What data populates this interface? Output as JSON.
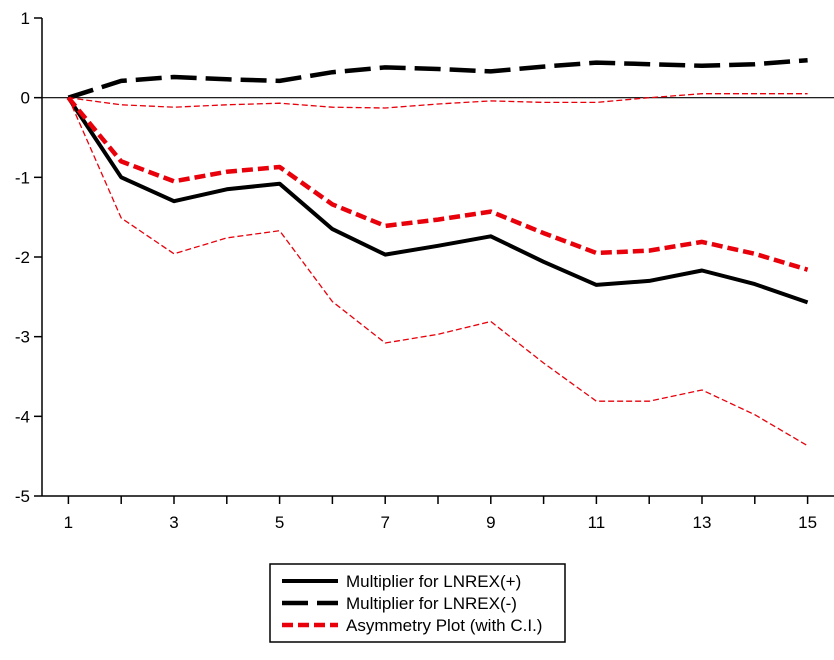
{
  "chart_data": {
    "type": "line",
    "x": [
      1,
      2,
      3,
      4,
      5,
      6,
      7,
      8,
      9,
      10,
      11,
      12,
      13,
      14,
      15
    ],
    "x_tick_labels": [
      "1",
      "3",
      "5",
      "7",
      "9",
      "11",
      "13",
      "15"
    ],
    "xlim": [
      0.5,
      15.5
    ],
    "ylim": [
      -5,
      1
    ],
    "y_tick_labels": [
      "1",
      "0",
      "-1",
      "-2",
      "-3",
      "-4",
      "-5"
    ],
    "zero_line": true,
    "grid": false,
    "legend_position": "bottom-center",
    "series": [
      {
        "name": "Multiplier for LNREX(+)",
        "color": "#000000",
        "style": "solid",
        "values": [
          0,
          -1.0,
          -1.3,
          -1.15,
          -1.08,
          -1.65,
          -1.97,
          -1.86,
          -1.74,
          -2.06,
          -2.35,
          -2.3,
          -2.17,
          -2.34,
          -2.57
        ]
      },
      {
        "name": "Multiplier for LNREX(-)",
        "color": "#000000",
        "style": "longdash",
        "values": [
          0,
          0.21,
          0.26,
          0.23,
          0.21,
          0.32,
          0.38,
          0.36,
          0.33,
          0.39,
          0.44,
          0.42,
          0.4,
          0.42,
          0.47
        ]
      },
      {
        "name": "Asymmetry Plot (with C.I.)",
        "color": "#e8000b",
        "style": "dash",
        "values": [
          0,
          -0.8,
          -1.05,
          -0.93,
          -0.87,
          -1.34,
          -1.61,
          -1.53,
          -1.43,
          -1.7,
          -1.95,
          -1.92,
          -1.81,
          -1.96,
          -2.16
        ]
      },
      {
        "name": "",
        "color": "#e8000b",
        "style": "thin-dash",
        "values": [
          0,
          -0.09,
          -0.12,
          -0.09,
          -0.07,
          -0.12,
          -0.13,
          -0.08,
          -0.04,
          -0.06,
          -0.06,
          0.0,
          0.05,
          0.05,
          0.05
        ]
      },
      {
        "name": "",
        "color": "#e8000b",
        "style": "thin-dash",
        "values": [
          0,
          -1.51,
          -1.96,
          -1.76,
          -1.67,
          -2.56,
          -3.08,
          -2.97,
          -2.81,
          -3.33,
          -3.81,
          -3.81,
          -3.67,
          -3.98,
          -4.37
        ]
      }
    ]
  },
  "legend": {
    "items": [
      {
        "label": "Multiplier for LNREX(+)",
        "style": "solid",
        "color": "#000000"
      },
      {
        "label": "Multiplier for LNREX(-)",
        "style": "longdash",
        "color": "#000000"
      },
      {
        "label": "Asymmetry Plot (with C.I.)",
        "style": "dash",
        "color": "#e8000b"
      }
    ]
  }
}
